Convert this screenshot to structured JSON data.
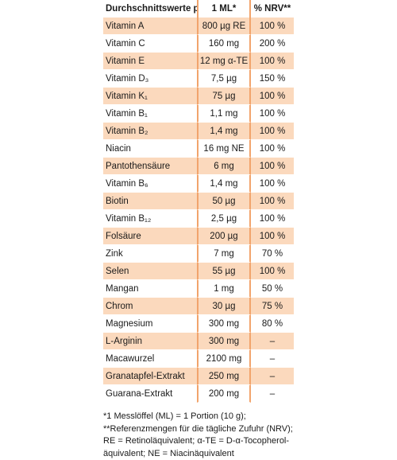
{
  "header": {
    "name": "Durchschnittswerte pro:",
    "amount": "1 ML*",
    "nrv": "% NRV**"
  },
  "colors": {
    "shade": "#fbd9bd",
    "divider": "#f2a46c"
  },
  "rows": [
    {
      "name": "Vitamin A",
      "amount": "800 µg RE",
      "nrv": "100 %"
    },
    {
      "name": "Vitamin C",
      "amount": "160 mg",
      "nrv": "200 %"
    },
    {
      "name": "Vitamin E",
      "amount": "12 mg α-TE",
      "nrv": "100 %"
    },
    {
      "name": "Vitamin D₃",
      "amount": "7,5 µg",
      "nrv": "150 %"
    },
    {
      "name": "Vitamin K₁",
      "amount": "75 µg",
      "nrv": "100 %"
    },
    {
      "name": "Vitamin B₁",
      "amount": "1,1 mg",
      "nrv": "100 %"
    },
    {
      "name": "Vitamin B₂",
      "amount": "1,4 mg",
      "nrv": "100 %"
    },
    {
      "name": "Niacin",
      "amount": "16 mg NE",
      "nrv": "100 %"
    },
    {
      "name": "Pantothensäure",
      "amount": "6 mg",
      "nrv": "100 %"
    },
    {
      "name": "Vitamin B₆",
      "amount": "1,4 mg",
      "nrv": "100 %"
    },
    {
      "name": "Biotin",
      "amount": "50 µg",
      "nrv": "100 %"
    },
    {
      "name": "Vitamin B₁₂",
      "amount": "2,5 µg",
      "nrv": "100 %"
    },
    {
      "name": "Folsäure",
      "amount": "200 µg",
      "nrv": "100 %"
    },
    {
      "name": "Zink",
      "amount": "7 mg",
      "nrv": "70 %"
    },
    {
      "name": "Selen",
      "amount": "55 µg",
      "nrv": "100 %"
    },
    {
      "name": "Mangan",
      "amount": "1 mg",
      "nrv": "50 %"
    },
    {
      "name": "Chrom",
      "amount": "30 µg",
      "nrv": "75 %"
    },
    {
      "name": "Magnesium",
      "amount": "300 mg",
      "nrv": "80 %"
    },
    {
      "name": "L-Arginin",
      "amount": "300 mg",
      "nrv": "–"
    },
    {
      "name": "Macawurzel",
      "amount": "2100 mg",
      "nrv": "–"
    },
    {
      "name": "Granatapfel-Extrakt",
      "amount": "250 mg",
      "nrv": "–"
    },
    {
      "name": "Guarana-Extrakt",
      "amount": "200 mg",
      "nrv": "–"
    }
  ],
  "footnotes": [
    "*1 Messlöffel (ML) = 1 Portion (10 g);",
    "**Referenzmengen für die tägliche Zufuhr (NRV);",
    "RE = Retinoläquivalent; α-TE = D-α-Tocopherol-",
    "äquivalent; NE = Niacinäquivalent"
  ]
}
